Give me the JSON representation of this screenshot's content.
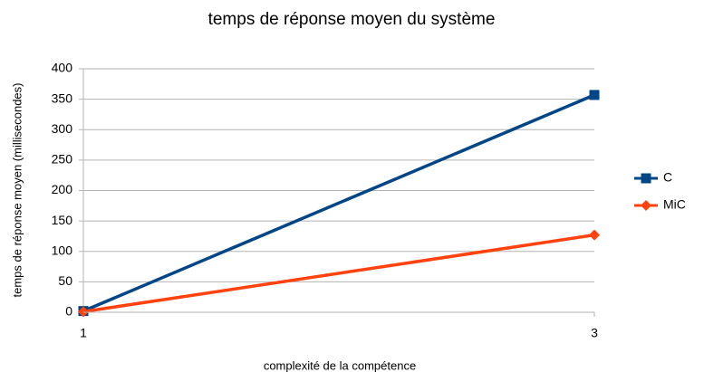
{
  "chart_data": {
    "type": "line",
    "title": "temps de réponse moyen du système",
    "x_label": "complexité de la compétence",
    "y_label": "temps de réponse moyen (millisecondes)",
    "categories": [
      "1",
      "3"
    ],
    "series": [
      {
        "name": "C",
        "color": "#004586",
        "marker": "square",
        "values": [
          2,
          357
        ]
      },
      {
        "name": "MiC",
        "color": "#ff420e",
        "marker": "diamond",
        "values": [
          1,
          127
        ]
      }
    ],
    "ylim": [
      0,
      400
    ],
    "yticks": [
      0,
      50,
      100,
      150,
      200,
      250,
      300,
      350,
      400
    ],
    "grid": true,
    "legend": "right"
  }
}
